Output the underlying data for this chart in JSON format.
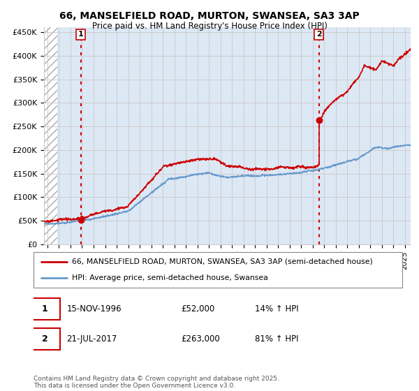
{
  "title_line1": "66, MANSELFIELD ROAD, MURTON, SWANSEA, SA3 3AP",
  "title_line2": "Price paid vs. HM Land Registry's House Price Index (HPI)",
  "ylabel_ticks": [
    "£0",
    "£50K",
    "£100K",
    "£150K",
    "£200K",
    "£250K",
    "£300K",
    "£350K",
    "£400K",
    "£450K"
  ],
  "ytick_values": [
    0,
    50000,
    100000,
    150000,
    200000,
    250000,
    300000,
    350000,
    400000,
    450000
  ],
  "ylim": [
    0,
    460000
  ],
  "xlim_start": 1993.7,
  "xlim_end": 2025.5,
  "sale1_x": 1996.88,
  "sale1_y": 52000,
  "sale2_x": 2017.54,
  "sale2_y": 263000,
  "red_line_color": "#cc0000",
  "blue_line_color": "#6699cc",
  "marker_color": "#cc0000",
  "dashed_line_color": "#cc0000",
  "grid_color": "#cccccc",
  "hatch_color": "#aaaaaa",
  "plot_bg_color": "#dde8f5",
  "legend_label_red": "66, MANSELFIELD ROAD, MURTON, SWANSEA, SA3 3AP (semi-detached house)",
  "legend_label_blue": "HPI: Average price, semi-detached house, Swansea",
  "annotation1_num": "1",
  "annotation2_num": "2",
  "info1_date": "15-NOV-1996",
  "info1_price": "£52,000",
  "info1_hpi": "14% ↑ HPI",
  "info2_date": "21-JUL-2017",
  "info2_price": "£263,000",
  "info2_hpi": "81% ↑ HPI",
  "footer_text": "Contains HM Land Registry data © Crown copyright and database right 2025.\nThis data is licensed under the Open Government Licence v3.0.",
  "xtick_years": [
    1994,
    1995,
    1996,
    1997,
    1998,
    1999,
    2000,
    2001,
    2002,
    2003,
    2004,
    2005,
    2006,
    2007,
    2008,
    2009,
    2010,
    2011,
    2012,
    2013,
    2014,
    2015,
    2016,
    2017,
    2018,
    2019,
    2020,
    2021,
    2022,
    2023,
    2024,
    2025
  ]
}
